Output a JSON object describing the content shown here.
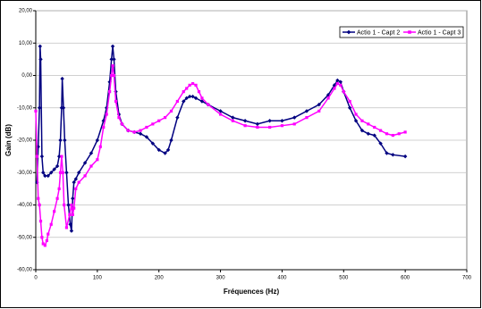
{
  "chart_data": {
    "type": "line",
    "xlabel": "Fréquences (Hz)",
    "ylabel": "Gain (dB)",
    "xlim": [
      0,
      700
    ],
    "xticks": [
      0,
      100,
      200,
      300,
      400,
      500,
      600,
      700
    ],
    "ylim": [
      -60,
      20
    ],
    "yticks": [
      {
        "value": -60,
        "label": "-60,00"
      },
      {
        "value": -50,
        "label": "-50,00"
      },
      {
        "value": -40,
        "label": "-40,00"
      },
      {
        "value": -30,
        "label": "-30,00"
      },
      {
        "value": -20,
        "label": "-20,00"
      },
      {
        "value": -10,
        "label": "-10,00"
      },
      {
        "value": 0,
        "label": "0,00"
      },
      {
        "value": 10,
        "label": "10,00"
      },
      {
        "value": 20,
        "label": "20,00"
      }
    ],
    "grid": true,
    "legend": "top-right",
    "series": [
      {
        "name": "Actio 1 - Capt 2",
        "color": "#000080",
        "marker": "diamond",
        "x": [
          2,
          4,
          6,
          7,
          8,
          10,
          12,
          15,
          20,
          25,
          30,
          35,
          38,
          40,
          42,
          43,
          45,
          47,
          50,
          53,
          56,
          58,
          60,
          62,
          65,
          70,
          80,
          90,
          100,
          110,
          115,
          120,
          123,
          125,
          127,
          130,
          135,
          140,
          150,
          160,
          170,
          180,
          190,
          200,
          210,
          215,
          220,
          230,
          240,
          245,
          250,
          255,
          260,
          270,
          280,
          300,
          320,
          340,
          360,
          380,
          400,
          420,
          440,
          460,
          475,
          485,
          490,
          495,
          500,
          510,
          520,
          530,
          540,
          550,
          560,
          570,
          580,
          600
        ],
        "values": [
          -33,
          -22,
          -10,
          9,
          5,
          -25,
          -30,
          -31,
          -31,
          -30,
          -29,
          -28,
          -25,
          -20,
          -10,
          -1,
          -10,
          -20,
          -30,
          -40,
          -46,
          -48,
          -38,
          -33,
          -32,
          -30,
          -27,
          -24,
          -20,
          -14,
          -10,
          -2,
          5,
          9,
          5,
          -5,
          -12,
          -15,
          -17,
          -17.5,
          -18,
          -19,
          -21,
          -23,
          -24,
          -23,
          -20,
          -13,
          -8,
          -7,
          -6.5,
          -6.5,
          -7,
          -8,
          -9,
          -11,
          -13,
          -14,
          -15,
          -14,
          -14,
          -13,
          -11,
          -9,
          -6,
          -3,
          -1.5,
          -2,
          -5,
          -10,
          -14,
          -17,
          -18,
          -18.5,
          -21,
          -24,
          -24.5,
          -25
        ]
      },
      {
        "name": "Actio 1 - Capt 3",
        "color": "#ff00ff",
        "marker": "square",
        "x": [
          0,
          2,
          4,
          6,
          8,
          10,
          12,
          15,
          18,
          20,
          25,
          30,
          35,
          38,
          40,
          42,
          44,
          46,
          50,
          55,
          58,
          60,
          62,
          65,
          70,
          80,
          90,
          100,
          105,
          110,
          115,
          120,
          123,
          125,
          127,
          130,
          135,
          140,
          150,
          160,
          170,
          180,
          190,
          200,
          210,
          220,
          230,
          240,
          245,
          250,
          255,
          260,
          265,
          270,
          280,
          300,
          320,
          340,
          360,
          380,
          400,
          420,
          440,
          460,
          475,
          485,
          490,
          495,
          500,
          510,
          520,
          530,
          540,
          550,
          560,
          570,
          580,
          590,
          600
        ],
        "values": [
          -11,
          -25,
          -38,
          -40,
          -45,
          -50,
          -52,
          -52.5,
          -51,
          -49,
          -46,
          -42,
          -38,
          -35,
          -30,
          -25,
          -30,
          -40,
          -47,
          -43,
          -40,
          -43,
          -41,
          -35,
          -33,
          -31,
          -28,
          -26,
          -22,
          -16,
          -12,
          -5,
          0,
          3,
          0,
          -8,
          -13,
          -15,
          -17,
          -17.5,
          -17,
          -16,
          -15,
          -14,
          -13,
          -11,
          -8,
          -5,
          -4,
          -3,
          -2.5,
          -3,
          -5,
          -7,
          -9,
          -12,
          -14,
          -15.5,
          -16,
          -16,
          -15.5,
          -15,
          -13,
          -11,
          -7,
          -4,
          -2.5,
          -3,
          -5,
          -8,
          -12,
          -14,
          -15,
          -16,
          -17,
          -18,
          -18.5,
          -18,
          -17.5
        ]
      }
    ]
  }
}
